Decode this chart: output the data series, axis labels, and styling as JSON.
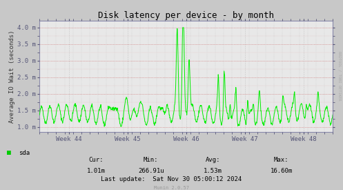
{
  "title": "Disk latency per device - by month",
  "ylabel": "Average IO Wait (seconds)",
  "background_color": "#c8c8c8",
  "plot_bg_color": "#e8e8e8",
  "line_color": "#00ee00",
  "ytick_labels": [
    "1.0 m",
    "1.5 m",
    "2.0 m",
    "2.5 m",
    "3.0 m",
    "3.5 m",
    "4.0 m"
  ],
  "ytick_values": [
    0.001,
    0.0015,
    0.002,
    0.0025,
    0.003,
    0.0035,
    0.004
  ],
  "ylim_min": 0.00085,
  "ylim_max": 0.0042,
  "xtick_labels": [
    "Week 44",
    "Week 45",
    "Week 46",
    "Week 47",
    "Week 48"
  ],
  "xtick_positions": [
    0.5,
    1.5,
    2.5,
    3.5,
    4.5
  ],
  "xlim_min": 0,
  "xlim_max": 5,
  "legend_label": "sda",
  "legend_color": "#00cc00",
  "cur": "1.01m",
  "min_val": "266.91u",
  "avg": "1.53m",
  "max_val": "16.60m",
  "last_update": "Last update:  Sat Nov 30 05:00:12 2024",
  "munin_version": "Munin 2.0.57",
  "rrdtool_label": "RRDTOOL / TOBI OETIKER",
  "title_fontsize": 9,
  "label_fontsize": 6.5,
  "tick_fontsize": 6.5,
  "stats_fontsize": 6.5
}
